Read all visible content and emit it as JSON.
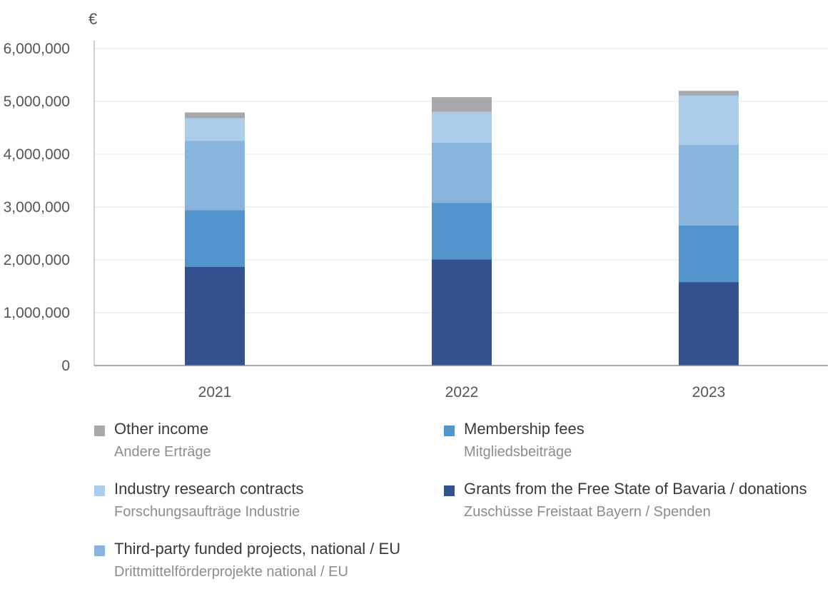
{
  "chart_data": {
    "type": "bar",
    "stacked": true,
    "unit_label": "€",
    "categories": [
      "2021",
      "2022",
      "2023"
    ],
    "ylim": [
      0,
      6000000
    ],
    "yticks": [
      "0",
      "1,000,000",
      "2,000,000",
      "3,000,000",
      "4,000,000",
      "5,000,000",
      "6,000,000"
    ],
    "grid": true,
    "series": [
      {
        "key": "grants",
        "name": "Grants from the Free State of Bavaria / donations",
        "name_de": "Zuschüsse Freistaat Bayern / Spenden",
        "color": "#33508f",
        "values": [
          1870000,
          2010000,
          1580000
        ]
      },
      {
        "key": "membership",
        "name": "Membership fees",
        "name_de": "Mitgliedsbeiträge",
        "color": "#5494cc",
        "values": [
          1070000,
          1070000,
          1070000
        ]
      },
      {
        "key": "third_party",
        "name": "Third-party funded projects, national / EU",
        "name_de": "Drittmittelförderprojekte national / EU",
        "color": "#88b4dd",
        "values": [
          1310000,
          1140000,
          1530000
        ]
      },
      {
        "key": "industry",
        "name": "Industry research contracts",
        "name_de": "Forschungsaufträge Industrie",
        "color": "#abcde9",
        "values": [
          430000,
          580000,
          930000
        ]
      },
      {
        "key": "other",
        "name": "Other income",
        "name_de": "Andere Erträge",
        "color": "#a6a8ab",
        "values": [
          110000,
          280000,
          90000
        ]
      }
    ]
  },
  "legend": [
    {
      "label": "Other income",
      "sublabel": "Andere Erträge",
      "color": "#a6a8ab",
      "icon": "square-swatch"
    },
    {
      "label": "Membership fees",
      "sublabel": "Mitgliedsbeiträge",
      "color": "#5494cc",
      "icon": "square-swatch"
    },
    {
      "label": "Industry research contracts",
      "sublabel": "Forschungsaufträge Industrie",
      "color": "#abcde9",
      "icon": "square-swatch"
    },
    {
      "label": "Grants from the Free State of Bavaria / donations",
      "sublabel": "Zuschüsse Freistaat Bayern / Spenden",
      "color": "#33508f",
      "icon": "square-swatch"
    },
    {
      "label": "Third-party funded projects, national / EU",
      "sublabel": "Drittmittelförderprojekte national / EU",
      "color": "#88b4dd",
      "icon": "square-swatch"
    }
  ]
}
